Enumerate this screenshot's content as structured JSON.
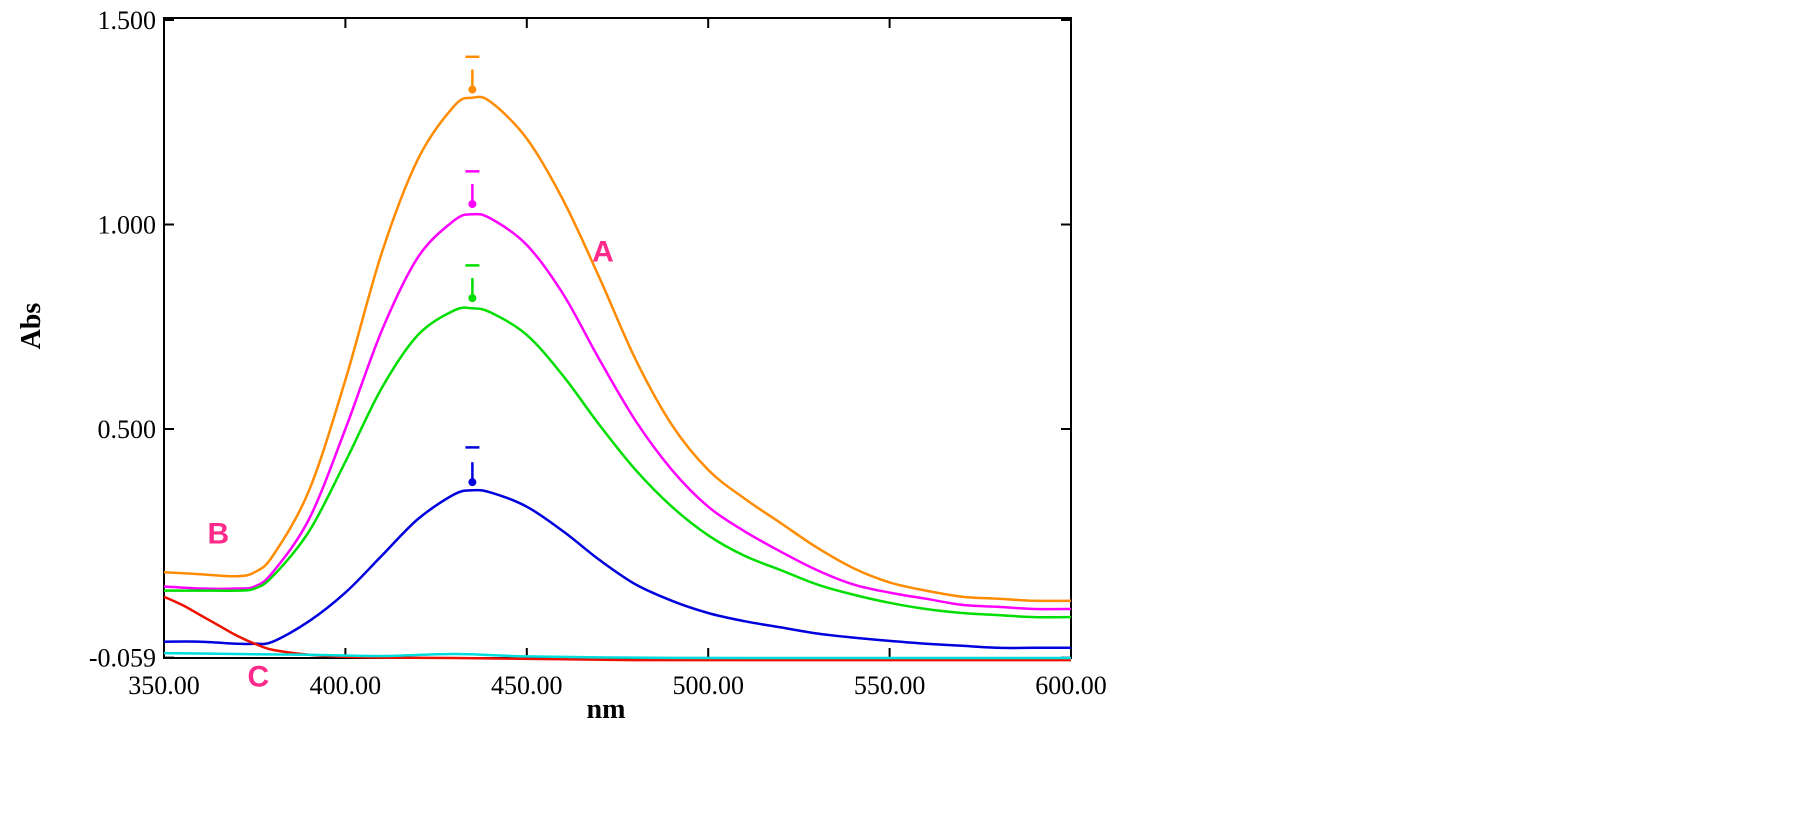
{
  "chart_data": {
    "type": "line",
    "xlabel": "nm",
    "ylabel": "Abs",
    "xlim": [
      350,
      600
    ],
    "ylim": [
      -0.12,
      1.5
    ],
    "x_ticks": [
      350,
      400,
      450,
      500,
      550,
      600
    ],
    "x_tick_labels": [
      "350.00",
      "400.00",
      "450.00",
      "500.00",
      "550.00",
      "600.00"
    ],
    "y_ticks": [
      -0.059,
      0.5,
      1.0,
      1.5
    ],
    "y_tick_labels": [
      "-0.059",
      "0.500",
      "1.000",
      "1.500"
    ],
    "grid": false,
    "annotations": [
      {
        "text": "A",
        "x": 468,
        "y": 0.91
      },
      {
        "text": "B",
        "x": 362,
        "y": 0.22
      },
      {
        "text": "C",
        "x": 373,
        "y": -0.13
      }
    ],
    "series": [
      {
        "color": "#ff8c00",
        "points": [
          [
            350,
            0.15
          ],
          [
            360,
            0.145
          ],
          [
            370,
            0.14
          ],
          [
            375,
            0.15
          ],
          [
            380,
            0.19
          ],
          [
            390,
            0.35
          ],
          [
            400,
            0.62
          ],
          [
            410,
            0.93
          ],
          [
            420,
            1.16
          ],
          [
            430,
            1.29
          ],
          [
            435,
            1.31
          ],
          [
            440,
            1.3
          ],
          [
            450,
            1.21
          ],
          [
            460,
            1.06
          ],
          [
            470,
            0.87
          ],
          [
            480,
            0.67
          ],
          [
            490,
            0.51
          ],
          [
            500,
            0.4
          ],
          [
            510,
            0.33
          ],
          [
            520,
            0.27
          ],
          [
            530,
            0.21
          ],
          [
            540,
            0.16
          ],
          [
            550,
            0.125
          ],
          [
            560,
            0.105
          ],
          [
            570,
            0.09
          ],
          [
            580,
            0.085
          ],
          [
            590,
            0.08
          ],
          [
            600,
            0.08
          ]
        ],
        "peak_marker": {
          "x": 435,
          "y": 1.33,
          "cap": 1.41
        }
      },
      {
        "color": "#ff00ff",
        "points": [
          [
            350,
            0.115
          ],
          [
            360,
            0.11
          ],
          [
            370,
            0.11
          ],
          [
            375,
            0.115
          ],
          [
            380,
            0.15
          ],
          [
            390,
            0.28
          ],
          [
            400,
            0.5
          ],
          [
            410,
            0.74
          ],
          [
            420,
            0.92
          ],
          [
            430,
            1.01
          ],
          [
            435,
            1.025
          ],
          [
            440,
            1.015
          ],
          [
            450,
            0.95
          ],
          [
            460,
            0.83
          ],
          [
            470,
            0.67
          ],
          [
            480,
            0.52
          ],
          [
            490,
            0.4
          ],
          [
            500,
            0.31
          ],
          [
            510,
            0.25
          ],
          [
            520,
            0.2
          ],
          [
            530,
            0.155
          ],
          [
            540,
            0.12
          ],
          [
            550,
            0.1
          ],
          [
            560,
            0.085
          ],
          [
            570,
            0.07
          ],
          [
            580,
            0.065
          ],
          [
            590,
            0.06
          ],
          [
            600,
            0.06
          ]
        ],
        "peak_marker": {
          "x": 435,
          "y": 1.05,
          "cap": 1.13
        }
      },
      {
        "color": "#00dd00",
        "points": [
          [
            350,
            0.105
          ],
          [
            360,
            0.105
          ],
          [
            370,
            0.105
          ],
          [
            375,
            0.11
          ],
          [
            380,
            0.14
          ],
          [
            390,
            0.25
          ],
          [
            400,
            0.42
          ],
          [
            410,
            0.6
          ],
          [
            420,
            0.73
          ],
          [
            430,
            0.79
          ],
          [
            435,
            0.795
          ],
          [
            440,
            0.785
          ],
          [
            450,
            0.73
          ],
          [
            460,
            0.63
          ],
          [
            470,
            0.51
          ],
          [
            480,
            0.4
          ],
          [
            490,
            0.31
          ],
          [
            500,
            0.24
          ],
          [
            510,
            0.19
          ],
          [
            520,
            0.155
          ],
          [
            530,
            0.12
          ],
          [
            540,
            0.095
          ],
          [
            550,
            0.075
          ],
          [
            560,
            0.06
          ],
          [
            570,
            0.05
          ],
          [
            580,
            0.045
          ],
          [
            590,
            0.04
          ],
          [
            600,
            0.04
          ]
        ],
        "peak_marker": {
          "x": 435,
          "y": 0.82,
          "cap": 0.9
        }
      },
      {
        "color": "#0000dd",
        "points": [
          [
            350,
            -0.02
          ],
          [
            360,
            -0.02
          ],
          [
            370,
            -0.025
          ],
          [
            375,
            -0.025
          ],
          [
            380,
            -0.02
          ],
          [
            390,
            0.03
          ],
          [
            400,
            0.1
          ],
          [
            410,
            0.19
          ],
          [
            420,
            0.28
          ],
          [
            430,
            0.34
          ],
          [
            435,
            0.35
          ],
          [
            440,
            0.345
          ],
          [
            450,
            0.31
          ],
          [
            460,
            0.25
          ],
          [
            470,
            0.18
          ],
          [
            480,
            0.12
          ],
          [
            490,
            0.08
          ],
          [
            500,
            0.05
          ],
          [
            510,
            0.03
          ],
          [
            520,
            0.015
          ],
          [
            530,
            0.0
          ],
          [
            540,
            -0.01
          ],
          [
            550,
            -0.018
          ],
          [
            560,
            -0.025
          ],
          [
            570,
            -0.03
          ],
          [
            580,
            -0.035
          ],
          [
            590,
            -0.035
          ],
          [
            600,
            -0.035
          ]
        ],
        "peak_marker": {
          "x": 435,
          "y": 0.37,
          "cap": 0.455
        }
      },
      {
        "color": "#ee1100",
        "points": [
          [
            350,
            0.09
          ],
          [
            355,
            0.07
          ],
          [
            360,
            0.045
          ],
          [
            365,
            0.02
          ],
          [
            370,
            -0.005
          ],
          [
            375,
            -0.025
          ],
          [
            380,
            -0.04
          ],
          [
            390,
            -0.052
          ],
          [
            400,
            -0.057
          ],
          [
            410,
            -0.059
          ],
          [
            430,
            -0.06
          ],
          [
            460,
            -0.063
          ],
          [
            480,
            -0.065
          ],
          [
            500,
            -0.065
          ],
          [
            550,
            -0.065
          ],
          [
            580,
            -0.065
          ],
          [
            600,
            -0.065
          ]
        ]
      },
      {
        "color": "#00dddd",
        "points": [
          [
            350,
            -0.048
          ],
          [
            370,
            -0.05
          ],
          [
            390,
            -0.052
          ],
          [
            410,
            -0.055
          ],
          [
            430,
            -0.05
          ],
          [
            450,
            -0.056
          ],
          [
            480,
            -0.059
          ],
          [
            510,
            -0.06
          ],
          [
            550,
            -0.06
          ],
          [
            580,
            -0.06
          ],
          [
            600,
            -0.06
          ]
        ]
      }
    ]
  }
}
